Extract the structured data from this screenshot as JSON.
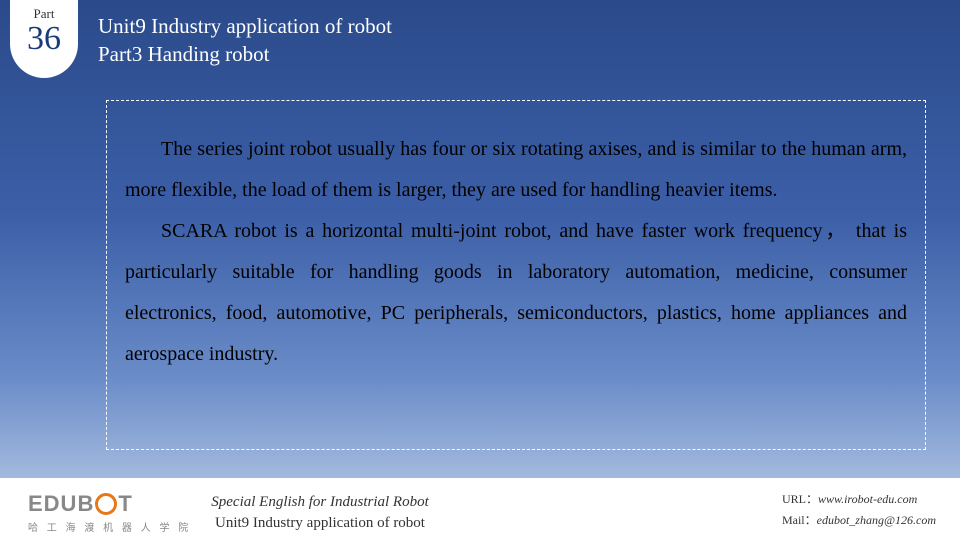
{
  "badge": {
    "label": "Part",
    "number": "36"
  },
  "header": {
    "line1": "Unit9 Industry application of robot",
    "line2": "Part3 Handing robot"
  },
  "body": {
    "para1": "The series joint robot usually has four or six rotating axises, and is similar to the human arm, more flexible, the load of them is larger, they are used for handling heavier items.",
    "para2": "SCARA robot is a horizontal multi-joint robot, and have faster work frequency， that is particularly suitable for handling goods in laboratory automation, medicine, consumer electronics, food, automotive, PC peripherals, semiconductors, plastics, home appliances and aerospace industry."
  },
  "footer": {
    "logo_text_left": "EDUB",
    "logo_text_right": "T",
    "logo_sub": "哈 工 海 渡 机 器 人 学 院",
    "center1": "Special English for Industrial Robot",
    "center2": "Unit9 Industry application of robot",
    "url_label": "URL：",
    "url": "www.irobot-edu.com",
    "mail_label": "Mail：",
    "mail": "edubot_zhang@126.com"
  },
  "colors": {
    "accent": "#e67817",
    "badge_bg": "#ffffff",
    "header_text": "#ffffff",
    "body_text": "#000000",
    "border": "#ffffff"
  }
}
